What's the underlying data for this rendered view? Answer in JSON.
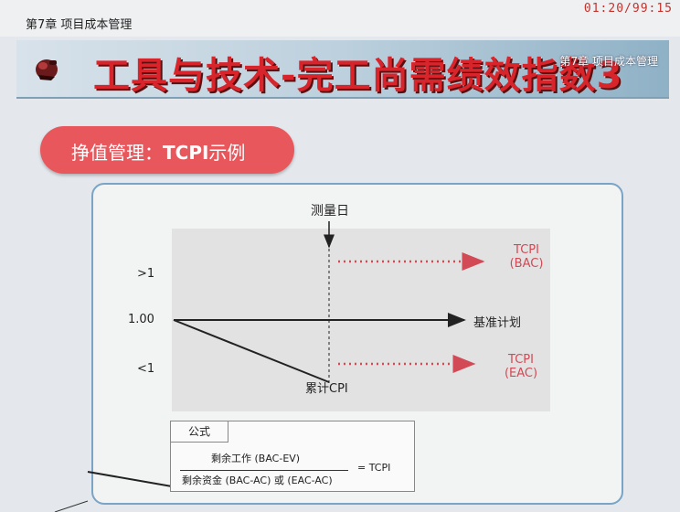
{
  "header": {
    "chapter": "第7章 项目成本管理",
    "clock": "01:20/99:15"
  },
  "banner": {
    "title": "工具与技术-完工尚需绩效指数3",
    "subtitle": "第7章 项目成本管理"
  },
  "section_pill": {
    "prefix": "挣值管理：",
    "bold": "TCPI",
    "suffix": "示例"
  },
  "chart": {
    "measure_day_label": "测量日",
    "y_labels": {
      "greater": ">1",
      "baseline": "1.00",
      "less": "<1"
    },
    "baseline_label": "基准计划",
    "cpi_label": "累计CPI",
    "tcpi_bac": {
      "line1": "TCPI",
      "line2": "(BAC)"
    },
    "tcpi_eac": {
      "line1": "TCPI",
      "line2": "(EAC)"
    }
  },
  "formula": {
    "tab_label": "公式",
    "numerator": "剩余工作 (BAC-EV)",
    "denominator": "剩余资金 (BAC-AC) 或 (EAC-AC)",
    "result": "= TCPI"
  },
  "colors": {
    "accent_red": "#d8242b",
    "pill": "#e8575c",
    "dotted_red": "#d14a55",
    "frame_border": "#7aa4c6"
  }
}
